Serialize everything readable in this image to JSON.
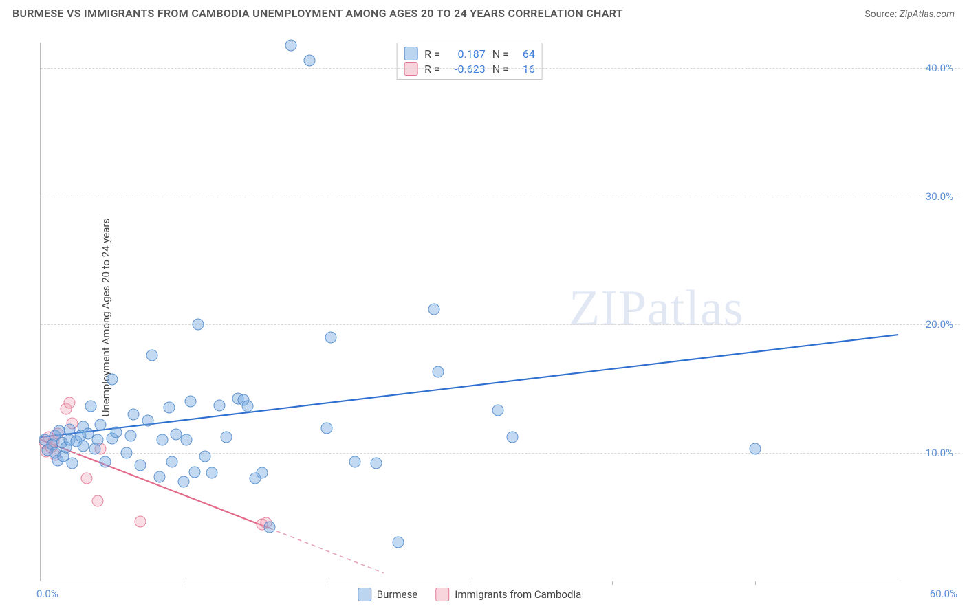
{
  "header": {
    "title": "BURMESE VS IMMIGRANTS FROM CAMBODIA UNEMPLOYMENT AMONG AGES 20 TO 24 YEARS CORRELATION CHART",
    "source_prefix": "Source: ",
    "source_name": "ZipAtlas.com"
  },
  "watermark": {
    "part1": "ZIP",
    "part2": "atlas"
  },
  "axes": {
    "y_label": "Unemployment Among Ages 20 to 24 years",
    "xlim": [
      0,
      60
    ],
    "ylim": [
      0,
      42
    ],
    "x_min_label": "0.0%",
    "x_max_label": "60.0%",
    "y_ticks": [
      {
        "v": 10,
        "label": "10.0%"
      },
      {
        "v": 20,
        "label": "20.0%"
      },
      {
        "v": 30,
        "label": "30.0%"
      },
      {
        "v": 40,
        "label": "40.0%"
      }
    ],
    "x_tick_positions": [
      0,
      10,
      20,
      30,
      40,
      50
    ],
    "grid_color": "#d8d8d8",
    "axis_color": "#bbbbbb",
    "label_color": "#5a8fd6"
  },
  "correlation_legend": {
    "rows": [
      {
        "swatch": "blue",
        "r_label": "R =",
        "r_value": "0.187",
        "n_label": "N =",
        "n_value": "64"
      },
      {
        "swatch": "pink",
        "r_label": "R =",
        "r_value": "-0.623",
        "n_label": "N =",
        "n_value": "16"
      }
    ]
  },
  "series_legend": {
    "items": [
      {
        "swatch": "blue",
        "label": "Burmese"
      },
      {
        "swatch": "pink",
        "label": "Immigrants from Cambodia"
      }
    ]
  },
  "series": {
    "burmese": {
      "color_fill": "rgba(120,170,225,0.45)",
      "color_stroke": "rgba(70,130,200,0.8)",
      "marker_radius": 8.5,
      "trend": {
        "x1": 0,
        "y1": 11.2,
        "x2": 60,
        "y2": 19.2,
        "stroke": "#2f6fd0",
        "width": 2.2,
        "dash": ""
      },
      "points": [
        [
          0.3,
          11.0
        ],
        [
          0.5,
          10.2
        ],
        [
          0.8,
          10.6
        ],
        [
          1.0,
          11.3
        ],
        [
          1.0,
          10.0
        ],
        [
          1.2,
          9.4
        ],
        [
          1.3,
          11.7
        ],
        [
          1.5,
          10.8
        ],
        [
          1.6,
          9.7
        ],
        [
          1.8,
          10.4
        ],
        [
          2.0,
          11.0
        ],
        [
          2.0,
          11.8
        ],
        [
          2.2,
          9.2
        ],
        [
          2.5,
          10.9
        ],
        [
          2.8,
          11.3
        ],
        [
          3.0,
          10.5
        ],
        [
          3.0,
          12.0
        ],
        [
          3.3,
          11.5
        ],
        [
          3.5,
          13.6
        ],
        [
          3.8,
          10.3
        ],
        [
          4.0,
          11.0
        ],
        [
          4.2,
          12.2
        ],
        [
          4.5,
          9.3
        ],
        [
          5.0,
          11.1
        ],
        [
          5.0,
          15.7
        ],
        [
          5.3,
          11.6
        ],
        [
          6.0,
          10.0
        ],
        [
          6.3,
          11.3
        ],
        [
          6.5,
          13.0
        ],
        [
          7.0,
          9.0
        ],
        [
          7.5,
          12.5
        ],
        [
          7.8,
          17.6
        ],
        [
          8.3,
          8.1
        ],
        [
          8.5,
          11.0
        ],
        [
          9.0,
          13.5
        ],
        [
          9.2,
          9.3
        ],
        [
          9.5,
          11.4
        ],
        [
          10.0,
          7.7
        ],
        [
          10.2,
          11.0
        ],
        [
          10.5,
          14.0
        ],
        [
          10.8,
          8.5
        ],
        [
          11.0,
          20.0
        ],
        [
          11.5,
          9.7
        ],
        [
          12.0,
          8.4
        ],
        [
          12.5,
          13.7
        ],
        [
          13.0,
          11.2
        ],
        [
          13.8,
          14.2
        ],
        [
          14.2,
          14.1
        ],
        [
          14.5,
          13.6
        ],
        [
          15.0,
          8.0
        ],
        [
          15.5,
          8.4
        ],
        [
          16.0,
          4.2
        ],
        [
          17.5,
          41.8
        ],
        [
          18.8,
          40.6
        ],
        [
          20.0,
          11.9
        ],
        [
          20.3,
          19.0
        ],
        [
          22.0,
          9.3
        ],
        [
          23.5,
          9.2
        ],
        [
          25.0,
          3.0
        ],
        [
          27.5,
          21.2
        ],
        [
          27.8,
          16.3
        ],
        [
          32.0,
          13.3
        ],
        [
          33.0,
          11.2
        ],
        [
          50.0,
          10.3
        ]
      ]
    },
    "cambodia": {
      "color_fill": "rgba(240,160,180,0.35)",
      "color_stroke": "rgba(225,110,140,0.8)",
      "marker_radius": 8.5,
      "trend_solid": {
        "x1": 0,
        "y1": 11.0,
        "x2": 16,
        "y2": 4.1,
        "stroke": "#e46a8a",
        "width": 2.2
      },
      "trend_dash": {
        "x1": 16,
        "y1": 4.1,
        "x2": 24,
        "y2": 0.6,
        "stroke": "#e8a5b8",
        "width": 1.6,
        "dash": "6 5"
      },
      "points": [
        [
          0.3,
          10.8
        ],
        [
          0.4,
          10.1
        ],
        [
          0.6,
          11.2
        ],
        [
          0.7,
          10.4
        ],
        [
          0.9,
          10.9
        ],
        [
          1.0,
          9.8
        ],
        [
          1.2,
          11.5
        ],
        [
          1.8,
          13.4
        ],
        [
          2.0,
          13.9
        ],
        [
          2.2,
          12.3
        ],
        [
          3.2,
          8.0
        ],
        [
          4.0,
          6.2
        ],
        [
          4.2,
          10.3
        ],
        [
          7.0,
          4.6
        ],
        [
          15.5,
          4.4
        ],
        [
          15.8,
          4.5
        ]
      ]
    }
  }
}
